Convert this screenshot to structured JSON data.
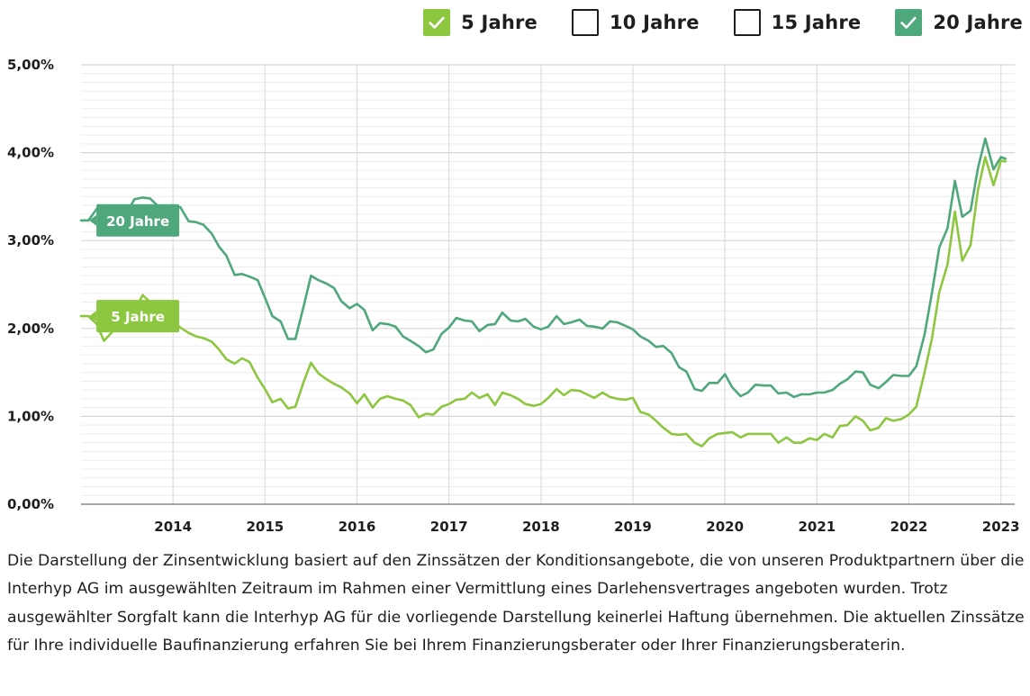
{
  "legend": [
    {
      "label": "5 Jahre",
      "checked": true,
      "color": "#8dc63f"
    },
    {
      "label": "10 Jahre",
      "checked": false,
      "color": "#1e1e1e"
    },
    {
      "label": "15 Jahre",
      "checked": false,
      "color": "#1e1e1e"
    },
    {
      "label": "20 Jahre",
      "checked": true,
      "color": "#4fa77c"
    }
  ],
  "caption": "Die Darstellung der Zinsentwicklung basiert auf den Zinssätzen der Konditionsangebote, die von unseren Produktpartnern über die Interhyp AG im ausgewählten Zeitraum im Rahmen einer Vermittlung eines Darlehensvertrages angeboten wurden. Trotz ausgewählter Sorgfalt kann die Interhyp AG für die vorliegende Darstellung keinerlei Haftung übernehmen. Die aktuellen Zinssätze für Ihre individuelle Baufinanzierung erfahren Sie bei Ihrem Finanzierungsberater oder Ihrer Finanzierungsberaterin.",
  "chart_data": {
    "type": "line",
    "ylim": [
      0,
      5
    ],
    "xlim": [
      2013.0,
      2023.15
    ],
    "yticks": [
      {
        "value": 0,
        "label": "0,00%"
      },
      {
        "value": 1,
        "label": "1,00%"
      },
      {
        "value": 2,
        "label": "2,00%"
      },
      {
        "value": 3,
        "label": "3,00%"
      },
      {
        "value": 4,
        "label": "4,00%"
      },
      {
        "value": 5,
        "label": "5,00%"
      }
    ],
    "xticks": [
      {
        "value": 2014,
        "label": "2014"
      },
      {
        "value": 2015,
        "label": "2015"
      },
      {
        "value": 2016,
        "label": "2016"
      },
      {
        "value": 2017,
        "label": "2017"
      },
      {
        "value": 2018,
        "label": "2018"
      },
      {
        "value": 2019,
        "label": "2019"
      },
      {
        "value": 2020,
        "label": "2020"
      },
      {
        "value": 2021,
        "label": "2021"
      },
      {
        "value": 2022,
        "label": "2022"
      },
      {
        "value": 2023,
        "label": "2023"
      }
    ],
    "minor_grid_step": 0.1,
    "series": [
      {
        "name": "20 Jahre",
        "color": "#4fa77c",
        "label_at": [
          2013.05,
          3.23
        ],
        "points": [
          [
            2013.0,
            3.23
          ],
          [
            2013.08,
            3.23
          ],
          [
            2013.17,
            3.36
          ],
          [
            2013.25,
            3.4
          ],
          [
            2013.33,
            3.38
          ],
          [
            2013.42,
            3.35
          ],
          [
            2013.5,
            3.32
          ],
          [
            2013.58,
            3.47
          ],
          [
            2013.67,
            3.49
          ],
          [
            2013.75,
            3.48
          ],
          [
            2013.83,
            3.4
          ],
          [
            2013.92,
            3.35
          ],
          [
            2014.0,
            3.38
          ],
          [
            2014.08,
            3.38
          ],
          [
            2014.17,
            3.22
          ],
          [
            2014.25,
            3.21
          ],
          [
            2014.33,
            3.18
          ],
          [
            2014.42,
            3.08
          ],
          [
            2014.5,
            2.93
          ],
          [
            2014.58,
            2.83
          ],
          [
            2014.67,
            2.61
          ],
          [
            2014.75,
            2.62
          ],
          [
            2014.83,
            2.59
          ],
          [
            2014.92,
            2.55
          ],
          [
            2015.0,
            2.35
          ],
          [
            2015.08,
            2.14
          ],
          [
            2015.17,
            2.08
          ],
          [
            2015.25,
            1.88
          ],
          [
            2015.33,
            1.88
          ],
          [
            2015.42,
            2.25
          ],
          [
            2015.5,
            2.6
          ],
          [
            2015.58,
            2.55
          ],
          [
            2015.67,
            2.51
          ],
          [
            2015.75,
            2.46
          ],
          [
            2015.83,
            2.31
          ],
          [
            2015.92,
            2.23
          ],
          [
            2016.0,
            2.28
          ],
          [
            2016.08,
            2.21
          ],
          [
            2016.17,
            1.98
          ],
          [
            2016.25,
            2.06
          ],
          [
            2016.33,
            2.05
          ],
          [
            2016.42,
            2.02
          ],
          [
            2016.5,
            1.91
          ],
          [
            2016.58,
            1.86
          ],
          [
            2016.67,
            1.8
          ],
          [
            2016.75,
            1.73
          ],
          [
            2016.83,
            1.76
          ],
          [
            2016.92,
            1.94
          ],
          [
            2017.0,
            2.01
          ],
          [
            2017.08,
            2.12
          ],
          [
            2017.17,
            2.09
          ],
          [
            2017.25,
            2.08
          ],
          [
            2017.33,
            1.97
          ],
          [
            2017.42,
            2.04
          ],
          [
            2017.5,
            2.05
          ],
          [
            2017.58,
            2.18
          ],
          [
            2017.67,
            2.09
          ],
          [
            2017.75,
            2.08
          ],
          [
            2017.83,
            2.11
          ],
          [
            2017.92,
            2.02
          ],
          [
            2018.0,
            1.99
          ],
          [
            2018.08,
            2.02
          ],
          [
            2018.17,
            2.14
          ],
          [
            2018.25,
            2.05
          ],
          [
            2018.33,
            2.07
          ],
          [
            2018.42,
            2.1
          ],
          [
            2018.5,
            2.03
          ],
          [
            2018.58,
            2.02
          ],
          [
            2018.67,
            2.0
          ],
          [
            2018.75,
            2.08
          ],
          [
            2018.83,
            2.07
          ],
          [
            2018.92,
            2.03
          ],
          [
            2019.0,
            1.99
          ],
          [
            2019.08,
            1.91
          ],
          [
            2019.17,
            1.86
          ],
          [
            2019.25,
            1.79
          ],
          [
            2019.33,
            1.8
          ],
          [
            2019.42,
            1.72
          ],
          [
            2019.5,
            1.56
          ],
          [
            2019.58,
            1.51
          ],
          [
            2019.67,
            1.31
          ],
          [
            2019.75,
            1.29
          ],
          [
            2019.83,
            1.38
          ],
          [
            2019.92,
            1.38
          ],
          [
            2020.0,
            1.48
          ],
          [
            2020.08,
            1.33
          ],
          [
            2020.17,
            1.23
          ],
          [
            2020.25,
            1.27
          ],
          [
            2020.33,
            1.36
          ],
          [
            2020.42,
            1.35
          ],
          [
            2020.5,
            1.35
          ],
          [
            2020.58,
            1.26
          ],
          [
            2020.67,
            1.27
          ],
          [
            2020.75,
            1.22
          ],
          [
            2020.83,
            1.25
          ],
          [
            2020.92,
            1.25
          ],
          [
            2021.0,
            1.27
          ],
          [
            2021.08,
            1.27
          ],
          [
            2021.17,
            1.3
          ],
          [
            2021.25,
            1.37
          ],
          [
            2021.33,
            1.42
          ],
          [
            2021.42,
            1.51
          ],
          [
            2021.5,
            1.5
          ],
          [
            2021.58,
            1.36
          ],
          [
            2021.67,
            1.32
          ],
          [
            2021.75,
            1.39
          ],
          [
            2021.83,
            1.47
          ],
          [
            2021.92,
            1.46
          ],
          [
            2022.0,
            1.46
          ],
          [
            2022.08,
            1.57
          ],
          [
            2022.17,
            1.93
          ],
          [
            2022.25,
            2.4
          ],
          [
            2022.33,
            2.92
          ],
          [
            2022.42,
            3.14
          ],
          [
            2022.5,
            3.68
          ],
          [
            2022.58,
            3.27
          ],
          [
            2022.67,
            3.34
          ],
          [
            2022.75,
            3.82
          ],
          [
            2022.83,
            4.16
          ],
          [
            2022.92,
            3.81
          ],
          [
            2023.0,
            3.95
          ],
          [
            2023.05,
            3.93
          ]
        ]
      },
      {
        "name": "5 Jahre",
        "color": "#8dc63f",
        "label_at": [
          2013.05,
          2.14
        ],
        "points": [
          [
            2013.0,
            2.14
          ],
          [
            2013.08,
            2.14
          ],
          [
            2013.17,
            2.05
          ],
          [
            2013.25,
            1.86
          ],
          [
            2013.33,
            1.95
          ],
          [
            2013.42,
            2.05
          ],
          [
            2013.5,
            2.1
          ],
          [
            2013.58,
            2.2
          ],
          [
            2013.67,
            2.38
          ],
          [
            2013.75,
            2.3
          ],
          [
            2013.83,
            2.18
          ],
          [
            2013.92,
            2.12
          ],
          [
            2014.0,
            2.08
          ],
          [
            2014.08,
            2.01
          ],
          [
            2014.17,
            1.95
          ],
          [
            2014.25,
            1.91
          ],
          [
            2014.33,
            1.89
          ],
          [
            2014.42,
            1.85
          ],
          [
            2014.5,
            1.76
          ],
          [
            2014.58,
            1.65
          ],
          [
            2014.67,
            1.6
          ],
          [
            2014.75,
            1.66
          ],
          [
            2014.83,
            1.62
          ],
          [
            2014.92,
            1.44
          ],
          [
            2015.0,
            1.31
          ],
          [
            2015.08,
            1.16
          ],
          [
            2015.17,
            1.2
          ],
          [
            2015.25,
            1.09
          ],
          [
            2015.33,
            1.11
          ],
          [
            2015.42,
            1.39
          ],
          [
            2015.5,
            1.61
          ],
          [
            2015.58,
            1.49
          ],
          [
            2015.67,
            1.42
          ],
          [
            2015.75,
            1.37
          ],
          [
            2015.83,
            1.33
          ],
          [
            2015.92,
            1.26
          ],
          [
            2016.0,
            1.15
          ],
          [
            2016.08,
            1.25
          ],
          [
            2016.17,
            1.1
          ],
          [
            2016.25,
            1.2
          ],
          [
            2016.33,
            1.23
          ],
          [
            2016.42,
            1.2
          ],
          [
            2016.5,
            1.18
          ],
          [
            2016.58,
            1.13
          ],
          [
            2016.67,
            0.99
          ],
          [
            2016.75,
            1.03
          ],
          [
            2016.83,
            1.02
          ],
          [
            2016.92,
            1.11
          ],
          [
            2017.0,
            1.14
          ],
          [
            2017.08,
            1.19
          ],
          [
            2017.17,
            1.2
          ],
          [
            2017.25,
            1.27
          ],
          [
            2017.33,
            1.21
          ],
          [
            2017.42,
            1.25
          ],
          [
            2017.5,
            1.13
          ],
          [
            2017.58,
            1.27
          ],
          [
            2017.67,
            1.24
          ],
          [
            2017.75,
            1.2
          ],
          [
            2017.83,
            1.14
          ],
          [
            2017.92,
            1.12
          ],
          [
            2018.0,
            1.14
          ],
          [
            2018.08,
            1.21
          ],
          [
            2018.17,
            1.31
          ],
          [
            2018.25,
            1.24
          ],
          [
            2018.33,
            1.3
          ],
          [
            2018.42,
            1.29
          ],
          [
            2018.5,
            1.25
          ],
          [
            2018.58,
            1.21
          ],
          [
            2018.67,
            1.27
          ],
          [
            2018.75,
            1.22
          ],
          [
            2018.83,
            1.2
          ],
          [
            2018.92,
            1.19
          ],
          [
            2019.0,
            1.21
          ],
          [
            2019.08,
            1.05
          ],
          [
            2019.17,
            1.02
          ],
          [
            2019.25,
            0.95
          ],
          [
            2019.33,
            0.87
          ],
          [
            2019.42,
            0.8
          ],
          [
            2019.5,
            0.79
          ],
          [
            2019.58,
            0.8
          ],
          [
            2019.67,
            0.7
          ],
          [
            2019.75,
            0.66
          ],
          [
            2019.83,
            0.75
          ],
          [
            2019.92,
            0.8
          ],
          [
            2020.0,
            0.81
          ],
          [
            2020.08,
            0.82
          ],
          [
            2020.17,
            0.76
          ],
          [
            2020.25,
            0.8
          ],
          [
            2020.33,
            0.8
          ],
          [
            2020.42,
            0.8
          ],
          [
            2020.5,
            0.8
          ],
          [
            2020.58,
            0.7
          ],
          [
            2020.67,
            0.76
          ],
          [
            2020.75,
            0.7
          ],
          [
            2020.83,
            0.7
          ],
          [
            2020.92,
            0.75
          ],
          [
            2021.0,
            0.73
          ],
          [
            2021.08,
            0.8
          ],
          [
            2021.17,
            0.76
          ],
          [
            2021.25,
            0.89
          ],
          [
            2021.33,
            0.9
          ],
          [
            2021.42,
            1.0
          ],
          [
            2021.5,
            0.95
          ],
          [
            2021.58,
            0.84
          ],
          [
            2021.67,
            0.87
          ],
          [
            2021.75,
            0.98
          ],
          [
            2021.83,
            0.95
          ],
          [
            2021.92,
            0.97
          ],
          [
            2022.0,
            1.02
          ],
          [
            2022.08,
            1.11
          ],
          [
            2022.17,
            1.5
          ],
          [
            2022.25,
            1.88
          ],
          [
            2022.33,
            2.41
          ],
          [
            2022.42,
            2.73
          ],
          [
            2022.5,
            3.33
          ],
          [
            2022.58,
            2.77
          ],
          [
            2022.67,
            2.95
          ],
          [
            2022.75,
            3.57
          ],
          [
            2022.83,
            3.95
          ],
          [
            2022.92,
            3.63
          ],
          [
            2023.0,
            3.91
          ],
          [
            2023.05,
            3.9
          ]
        ]
      }
    ]
  }
}
